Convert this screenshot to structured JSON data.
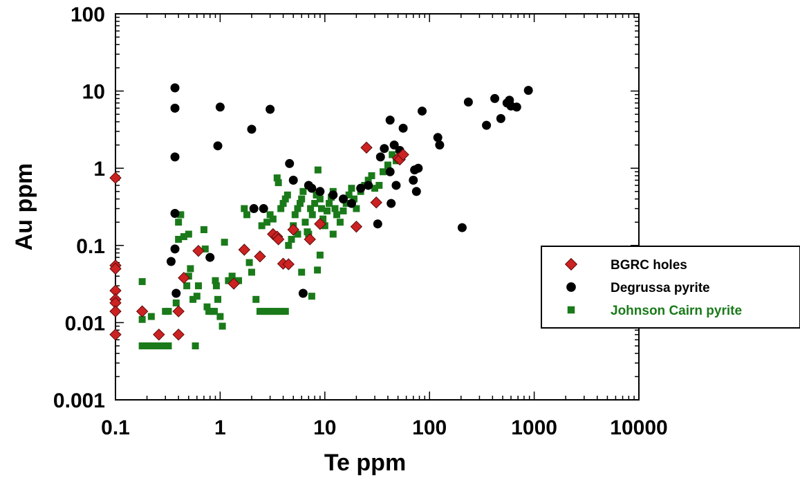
{
  "chart_data": {
    "type": "scatter",
    "xlabel": "Te ppm",
    "ylabel": "Au ppm",
    "xscale": "log",
    "yscale": "log",
    "xlim": [
      0.1,
      10000
    ],
    "ylim": [
      0.001,
      100
    ],
    "x_tick_labels": [
      "0.1",
      "1",
      "10",
      "100",
      "1000",
      "10000"
    ],
    "y_tick_labels": [
      "100",
      "10",
      "1",
      "0.1",
      "0.01",
      "0.001"
    ],
    "legend_position": "right",
    "grid": false,
    "series": [
      {
        "name": "BGRC holes",
        "marker": "diamond",
        "color": "#cc2222",
        "label_color": "#000000",
        "points": [
          [
            0.1,
            0.75
          ],
          [
            0.1,
            0.055
          ],
          [
            0.1,
            0.05
          ],
          [
            0.1,
            0.026
          ],
          [
            0.1,
            0.02
          ],
          [
            0.1,
            0.018
          ],
          [
            0.1,
            0.014
          ],
          [
            0.1,
            0.007
          ],
          [
            0.18,
            0.014
          ],
          [
            0.26,
            0.007
          ],
          [
            0.4,
            0.007
          ],
          [
            0.4,
            0.014
          ],
          [
            0.45,
            0.038
          ],
          [
            0.62,
            0.085
          ],
          [
            1.35,
            0.032
          ],
          [
            1.7,
            0.088
          ],
          [
            2.4,
            0.072
          ],
          [
            3.2,
            0.14
          ],
          [
            3.5,
            0.13
          ],
          [
            3.6,
            0.12
          ],
          [
            4.0,
            0.058
          ],
          [
            4.5,
            0.057
          ],
          [
            5.0,
            0.16
          ],
          [
            7.2,
            0.12
          ],
          [
            9.0,
            0.19
          ],
          [
            20.0,
            0.175
          ],
          [
            25.0,
            1.85
          ],
          [
            31.0,
            0.36
          ],
          [
            50.0,
            1.35
          ],
          [
            52.0,
            1.3
          ],
          [
            56.0,
            1.5
          ]
        ]
      },
      {
        "name": "Degrussa pyrite",
        "marker": "circle",
        "color": "#000000",
        "label_color": "#000000",
        "points": [
          [
            0.37,
            11.0
          ],
          [
            0.37,
            6.0
          ],
          [
            0.37,
            1.4
          ],
          [
            0.37,
            0.26
          ],
          [
            0.37,
            0.09
          ],
          [
            0.34,
            0.062
          ],
          [
            0.38,
            0.024
          ],
          [
            1.0,
            6.2
          ],
          [
            0.95,
            1.95
          ],
          [
            0.8,
            0.07
          ],
          [
            2.0,
            3.2
          ],
          [
            2.1,
            0.3
          ],
          [
            2.6,
            0.3
          ],
          [
            3.0,
            5.8
          ],
          [
            4.6,
            1.15
          ],
          [
            5.0,
            0.7
          ],
          [
            6.2,
            0.024
          ],
          [
            7.0,
            0.6
          ],
          [
            7.5,
            0.55
          ],
          [
            9.0,
            0.5
          ],
          [
            12.0,
            0.45
          ],
          [
            15.0,
            0.4
          ],
          [
            18.0,
            0.35
          ],
          [
            22.0,
            0.55
          ],
          [
            26.0,
            0.6
          ],
          [
            32.0,
            0.19
          ],
          [
            34.0,
            1.4
          ],
          [
            37.0,
            1.8
          ],
          [
            42.0,
            4.2
          ],
          [
            42.0,
            0.9
          ],
          [
            43.0,
            0.35
          ],
          [
            46.0,
            2.0
          ],
          [
            48.0,
            0.6
          ],
          [
            52.0,
            1.7
          ],
          [
            56.0,
            3.3
          ],
          [
            70.0,
            0.7
          ],
          [
            72.0,
            0.95
          ],
          [
            75.0,
            0.5
          ],
          [
            78.0,
            1.0
          ],
          [
            85.0,
            5.5
          ],
          [
            120.0,
            2.5
          ],
          [
            125.0,
            2.0
          ],
          [
            205.0,
            0.17
          ],
          [
            235.0,
            7.2
          ],
          [
            350.0,
            3.6
          ],
          [
            420.0,
            8.0
          ],
          [
            480.0,
            4.4
          ],
          [
            550.0,
            7.0
          ],
          [
            580.0,
            7.6
          ],
          [
            600.0,
            6.4
          ],
          [
            680.0,
            6.2
          ],
          [
            880.0,
            10.2
          ]
        ]
      },
      {
        "name": "Johnson Cairn pyrite",
        "marker": "square",
        "color": "#1a7a1a",
        "label_color": "#1a7a1a",
        "points": [
          [
            0.18,
            0.034
          ],
          [
            0.18,
            0.011
          ],
          [
            0.18,
            0.005
          ],
          [
            0.2,
            0.005
          ],
          [
            0.22,
            0.005
          ],
          [
            0.25,
            0.005
          ],
          [
            0.28,
            0.005
          ],
          [
            0.3,
            0.005
          ],
          [
            0.32,
            0.005
          ],
          [
            0.22,
            0.012
          ],
          [
            0.3,
            0.014
          ],
          [
            0.32,
            0.014
          ],
          [
            0.38,
            0.018
          ],
          [
            0.4,
            0.2
          ],
          [
            0.42,
            0.25
          ],
          [
            0.4,
            0.12
          ],
          [
            0.45,
            0.13
          ],
          [
            0.5,
            0.14
          ],
          [
            0.48,
            0.03
          ],
          [
            0.5,
            0.04
          ],
          [
            0.52,
            0.05
          ],
          [
            0.55,
            0.02
          ],
          [
            0.58,
            0.005
          ],
          [
            0.6,
            0.022
          ],
          [
            0.62,
            0.03
          ],
          [
            0.7,
            0.16
          ],
          [
            0.72,
            0.09
          ],
          [
            0.75,
            0.016
          ],
          [
            0.78,
            0.014
          ],
          [
            0.82,
            0.014
          ],
          [
            0.85,
            0.014
          ],
          [
            0.88,
            0.014
          ],
          [
            0.9,
            0.035
          ],
          [
            0.92,
            0.03
          ],
          [
            0.95,
            0.02
          ],
          [
            1.0,
            0.012
          ],
          [
            1.05,
            0.009
          ],
          [
            1.1,
            0.11
          ],
          [
            1.2,
            0.035
          ],
          [
            1.3,
            0.04
          ],
          [
            1.5,
            0.035
          ],
          [
            1.7,
            0.3
          ],
          [
            1.8,
            0.25
          ],
          [
            1.9,
            0.06
          ],
          [
            2.0,
            0.045
          ],
          [
            2.2,
            0.02
          ],
          [
            2.4,
            0.014
          ],
          [
            2.6,
            0.014
          ],
          [
            2.8,
            0.014
          ],
          [
            3.0,
            0.014
          ],
          [
            3.2,
            0.014
          ],
          [
            3.5,
            0.014
          ],
          [
            3.8,
            0.014
          ],
          [
            4.2,
            0.014
          ],
          [
            2.5,
            0.18
          ],
          [
            2.8,
            0.2
          ],
          [
            3.0,
            0.25
          ],
          [
            3.2,
            0.22
          ],
          [
            3.5,
            0.75
          ],
          [
            3.6,
            0.65
          ],
          [
            3.8,
            0.3
          ],
          [
            4.0,
            0.35
          ],
          [
            4.2,
            0.4
          ],
          [
            4.4,
            0.45
          ],
          [
            4.5,
            0.1
          ],
          [
            4.8,
            0.12
          ],
          [
            5.0,
            0.18
          ],
          [
            5.2,
            0.25
          ],
          [
            5.5,
            0.3
          ],
          [
            5.8,
            0.35
          ],
          [
            6.0,
            0.4
          ],
          [
            6.2,
            0.5
          ],
          [
            6.5,
            0.2
          ],
          [
            6.8,
            0.15
          ],
          [
            7.0,
            0.14
          ],
          [
            7.3,
            0.3
          ],
          [
            7.6,
            0.25
          ],
          [
            8.0,
            0.35
          ],
          [
            8.3,
            0.45
          ],
          [
            8.6,
            0.95
          ],
          [
            9.0,
            0.4
          ],
          [
            9.3,
            0.3
          ],
          [
            9.6,
            0.22
          ],
          [
            10.0,
            0.18
          ],
          [
            10.5,
            0.28
          ],
          [
            11.0,
            0.35
          ],
          [
            11.5,
            0.42
          ],
          [
            12.0,
            0.5
          ],
          [
            12.5,
            0.3
          ],
          [
            13.0,
            0.25
          ],
          [
            14.0,
            0.2
          ],
          [
            15.0,
            0.28
          ],
          [
            16.0,
            0.35
          ],
          [
            17.0,
            0.45
          ],
          [
            18.0,
            0.55
          ],
          [
            19.0,
            0.4
          ],
          [
            20.0,
            0.3
          ],
          [
            22.0,
            0.5
          ],
          [
            24.0,
            0.6
          ],
          [
            26.0,
            0.7
          ],
          [
            28.0,
            0.8
          ],
          [
            30.0,
            0.55
          ],
          [
            33.0,
            0.6
          ],
          [
            36.0,
            0.9
          ],
          [
            40.0,
            1.1
          ],
          [
            44.0,
            1.5
          ],
          [
            48.0,
            1.25
          ],
          [
            5.5,
            0.14
          ],
          [
            6.0,
            0.045
          ],
          [
            7.5,
            0.022
          ],
          [
            8.5,
            0.048
          ],
          [
            9.0,
            0.075
          ],
          [
            12.0,
            0.14
          ]
        ]
      }
    ]
  }
}
